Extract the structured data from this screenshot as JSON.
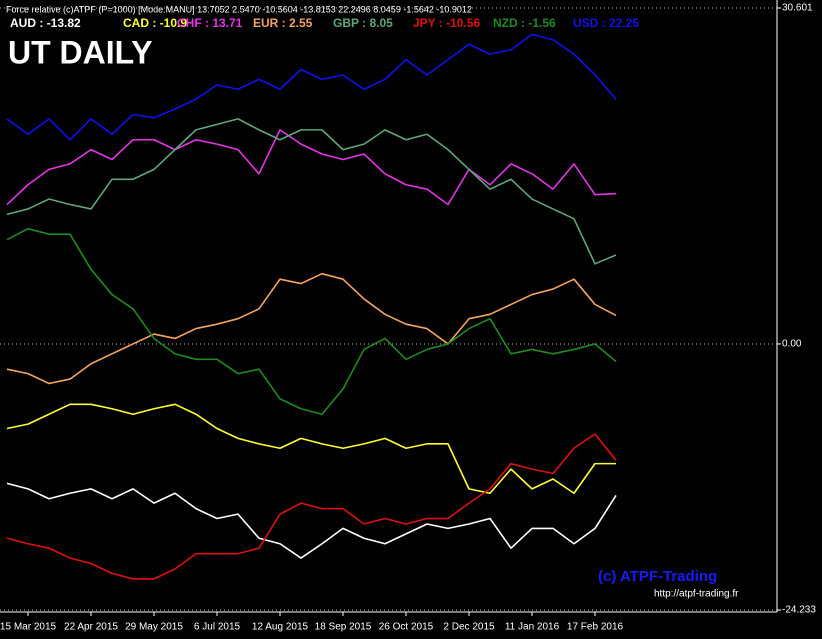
{
  "chart_data": {
    "type": "line",
    "header": "Force relative (c)ATPF (P=1000) [Mode:MANU] 13.7052 2.5470 -10.5604 -13.8153 22.2496 8.0459 -1.5642 -10.9012",
    "title": "UT DAILY",
    "annotations": [
      "(c) ATPF-Trading",
      "http://atpf-trading.fr"
    ],
    "categories": [
      null,
      "15 Mar 2015",
      null,
      null,
      "22 Apr 2015",
      null,
      null,
      "29 May 2015",
      null,
      null,
      "6 Jul 2015",
      null,
      null,
      "12 Aug 2015",
      null,
      null,
      "18 Sep 2015",
      null,
      null,
      "26 Oct 2015",
      null,
      null,
      "2 Dec 2015",
      null,
      null,
      "11 Jan 2016",
      null,
      null,
      "17 Feb 2016",
      null
    ],
    "ylim": [
      -24.233,
      30.601
    ],
    "yticks": [
      30.601,
      {
        "value": 0,
        "label": "0.00"
      },
      -24.233
    ],
    "grid": true,
    "grid_style": "dotted",
    "background": "#000000",
    "series": [
      {
        "name": "AUD : -13.82",
        "color": "#ffffff",
        "values": [
          -12.7,
          -13.2,
          -14.1,
          -13.6,
          -13.2,
          -14.1,
          -13.2,
          -14.5,
          -13.6,
          -15.0,
          -15.9,
          -15.5,
          -17.7,
          -18.2,
          -19.5,
          -18.2,
          -16.8,
          -17.7,
          -18.2,
          -17.3,
          -16.4,
          -16.8,
          -16.4,
          -15.9,
          -18.6,
          -16.8,
          -16.8,
          -18.2,
          -16.8,
          -13.8
        ]
      },
      {
        "name": "CAD : -10.9",
        "color": "#ffff33",
        "values": [
          -7.7,
          -7.3,
          -6.4,
          -5.5,
          -5.5,
          -5.9,
          -6.4,
          -5.9,
          -5.5,
          -6.4,
          -7.7,
          -8.6,
          -9.1,
          -9.5,
          -8.6,
          -9.1,
          -9.5,
          -9.1,
          -8.6,
          -9.5,
          -9.1,
          -9.1,
          -13.2,
          -13.6,
          -11.4,
          -13.2,
          -12.3,
          -13.6,
          -10.9,
          -10.9
        ]
      },
      {
        "name": "CHF : 13.71",
        "color": "#e633e6",
        "values": [
          12.7,
          14.5,
          15.9,
          16.4,
          17.7,
          16.8,
          18.6,
          18.6,
          17.7,
          18.6,
          18.2,
          17.7,
          15.5,
          19.5,
          18.2,
          17.3,
          16.8,
          17.3,
          15.5,
          14.5,
          14.1,
          12.7,
          15.9,
          14.5,
          16.4,
          15.5,
          14.1,
          16.4,
          13.6,
          13.7
        ]
      },
      {
        "name": "EUR : 2.55",
        "color": "#f4a460",
        "values": [
          -2.3,
          -2.7,
          -3.6,
          -3.2,
          -1.8,
          -0.9,
          0.0,
          0.9,
          0.5,
          1.4,
          1.8,
          2.3,
          3.2,
          5.9,
          5.5,
          6.4,
          5.9,
          4.1,
          2.7,
          1.8,
          1.4,
          0.0,
          2.3,
          2.7,
          3.6,
          4.5,
          5.0,
          5.9,
          3.6,
          2.6
        ]
      },
      {
        "name": "GBP : 8.05",
        "color": "#5fa77a",
        "values": [
          11.8,
          12.3,
          13.2,
          12.7,
          12.3,
          15.0,
          15.0,
          15.9,
          17.7,
          19.5,
          20.0,
          20.5,
          19.5,
          18.6,
          19.5,
          19.5,
          17.7,
          18.2,
          19.5,
          18.6,
          19.1,
          17.7,
          15.9,
          14.1,
          15.0,
          13.2,
          12.3,
          11.4,
          7.3,
          8.1
        ]
      },
      {
        "name": "JPY : -10.56",
        "color": "#e01010",
        "values": [
          -17.7,
          -18.2,
          -18.6,
          -19.5,
          -20.0,
          -20.9,
          -21.4,
          -21.4,
          -20.5,
          -19.1,
          -19.1,
          -19.1,
          -18.6,
          -15.5,
          -14.5,
          -15.0,
          -15.0,
          -16.4,
          -15.9,
          -16.4,
          -15.9,
          -15.9,
          -14.5,
          -13.2,
          -10.9,
          -11.4,
          -11.8,
          -9.5,
          -8.2,
          -10.6
        ]
      },
      {
        "name": "NZD : -1.56",
        "color": "#1f8a1f",
        "values": [
          9.5,
          10.5,
          10.0,
          10.0,
          6.8,
          4.5,
          3.2,
          0.5,
          -0.9,
          -1.4,
          -1.4,
          -2.7,
          -2.3,
          -5.0,
          -5.9,
          -6.4,
          -4.1,
          -0.5,
          0.5,
          -1.4,
          -0.5,
          0.0,
          1.4,
          2.3,
          -0.9,
          -0.5,
          -0.9,
          -0.5,
          0.0,
          -1.6
        ]
      },
      {
        "name": "USD : 22.25",
        "color": "#1010ee",
        "values": [
          20.5,
          19.1,
          20.5,
          18.6,
          20.5,
          19.1,
          20.9,
          20.6,
          21.4,
          22.3,
          23.6,
          23.2,
          24.1,
          23.2,
          25.0,
          24.1,
          24.5,
          23.2,
          24.1,
          25.9,
          24.5,
          25.9,
          27.3,
          26.4,
          26.8,
          28.2,
          27.7,
          26.4,
          24.5,
          22.3
        ]
      }
    ]
  }
}
